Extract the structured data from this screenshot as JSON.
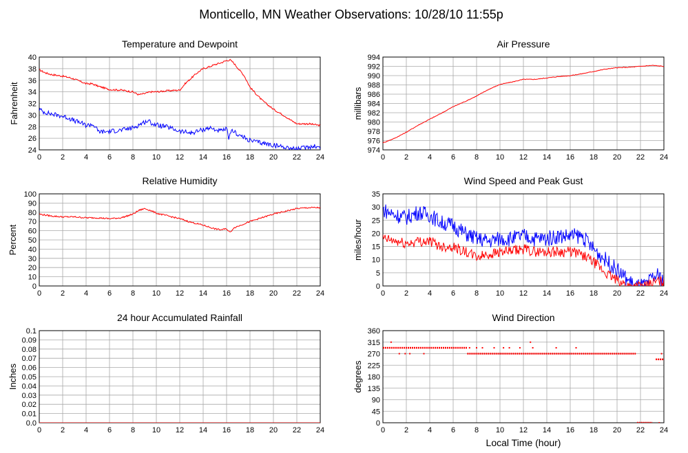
{
  "page": {
    "title": "Monticello, MN Weather Observations: 10/28/10 11:55p"
  },
  "x_axis_label": "Local Time (hour)",
  "chart_data": [
    {
      "id": "temp",
      "type": "line",
      "title": "Temperature and Dewpoint",
      "ylabel": "Fahrenheit",
      "xlabel": "",
      "xlim": [
        0,
        24
      ],
      "ylim": [
        24,
        40
      ],
      "xticks": [
        0,
        2,
        4,
        6,
        8,
        10,
        12,
        14,
        16,
        18,
        20,
        22,
        24
      ],
      "yticks": [
        24,
        26,
        28,
        30,
        32,
        34,
        36,
        38,
        40
      ],
      "grid": true,
      "series": [
        {
          "color": "#ff0000",
          "noise": 0.15,
          "x": [
            0,
            0.5,
            1,
            2,
            2.5,
            3,
            3.5,
            4,
            4.5,
            5,
            5.5,
            6,
            7,
            8,
            8.5,
            9,
            9.5,
            10,
            11,
            12,
            12.5,
            13,
            13.5,
            14,
            14.5,
            15,
            15.5,
            16,
            16.3,
            16.6,
            17,
            17.5,
            18,
            19,
            20,
            21,
            21.5,
            22,
            23,
            24
          ],
          "y": [
            37.8,
            37.3,
            37.0,
            36.7,
            36.5,
            36.2,
            35.8,
            35.4,
            35.4,
            35.0,
            34.7,
            34.4,
            34.3,
            34.0,
            33.5,
            33.7,
            34.0,
            34.0,
            34.2,
            34.3,
            35.5,
            36.4,
            37.3,
            38.0,
            38.3,
            38.7,
            39.0,
            39.4,
            39.5,
            39.0,
            38.0,
            36.8,
            34.8,
            32.6,
            31.0,
            29.8,
            29.1,
            28.5,
            28.5,
            28.2
          ]
        },
        {
          "color": "#0000ff",
          "noise": 0.4,
          "x": [
            0,
            0.3,
            1,
            2,
            2.5,
            3,
            3.5,
            4,
            4.5,
            4.8,
            5,
            5.5,
            6,
            7,
            8,
            8.5,
            9,
            9.3,
            9.7,
            10,
            11,
            12,
            13,
            14,
            14.5,
            15,
            15.5,
            16,
            16.2,
            16.5,
            17,
            18,
            19,
            20,
            21,
            22,
            22.5,
            23,
            23.5,
            24
          ],
          "y": [
            31.0,
            30.6,
            30.2,
            29.8,
            29.5,
            29.0,
            28.7,
            28.2,
            28.4,
            28.0,
            27.2,
            27.1,
            27.2,
            27.4,
            27.8,
            28.3,
            28.8,
            29.0,
            28.5,
            28.3,
            27.9,
            27.2,
            26.9,
            27.5,
            27.8,
            27.5,
            27.2,
            27.6,
            26.0,
            27.4,
            26.6,
            25.6,
            25.2,
            24.8,
            24.5,
            24.1,
            24.3,
            24.5,
            24.7,
            24.3
          ]
        }
      ]
    },
    {
      "id": "press",
      "type": "line",
      "title": "Air Pressure",
      "ylabel": "millibars",
      "xlabel": "",
      "xlim": [
        0,
        24
      ],
      "ylim": [
        974,
        994
      ],
      "xticks": [
        0,
        2,
        4,
        6,
        8,
        10,
        12,
        14,
        16,
        18,
        20,
        22,
        24
      ],
      "yticks": [
        974,
        976,
        978,
        980,
        982,
        984,
        986,
        988,
        990,
        992,
        994
      ],
      "grid": true,
      "series": [
        {
          "color": "#ff0000",
          "noise": 0.08,
          "x": [
            0,
            1,
            2,
            3,
            4,
            5,
            6,
            7,
            8,
            9,
            10,
            11,
            12,
            13,
            14,
            15,
            16,
            17,
            18,
            19,
            20,
            21,
            22,
            23,
            24
          ],
          "y": [
            975.5,
            976.5,
            977.8,
            979.3,
            980.6,
            981.9,
            983.3,
            984.4,
            985.6,
            987.0,
            988.1,
            988.6,
            989.2,
            989.2,
            989.5,
            989.8,
            990.0,
            990.4,
            990.9,
            991.4,
            991.7,
            991.8,
            992.0,
            992.2,
            992.0
          ]
        }
      ]
    },
    {
      "id": "rh",
      "type": "line",
      "title": "Relative Humidity",
      "ylabel": "Percent",
      "xlabel": "",
      "xlim": [
        0,
        24
      ],
      "ylim": [
        0,
        100
      ],
      "xticks": [
        0,
        2,
        4,
        6,
        8,
        10,
        12,
        14,
        16,
        18,
        20,
        22,
        24
      ],
      "yticks": [
        0,
        10,
        20,
        30,
        40,
        50,
        60,
        70,
        80,
        90,
        100
      ],
      "grid": true,
      "series": [
        {
          "color": "#ff0000",
          "noise": 0.8,
          "x": [
            0,
            1,
            2,
            3,
            4,
            5,
            6,
            7,
            8,
            8.5,
            9,
            9.5,
            10,
            11,
            12,
            13,
            14,
            15,
            15.5,
            16,
            16.3,
            16.6,
            17,
            18,
            19,
            20,
            21,
            22,
            23,
            24
          ],
          "y": [
            78,
            76,
            75,
            75,
            74,
            74,
            73,
            74,
            78,
            82,
            84,
            82,
            79,
            76,
            73,
            69,
            66,
            62,
            61,
            62,
            58,
            63,
            65,
            70,
            74,
            78,
            81,
            84,
            85,
            85
          ]
        }
      ]
    },
    {
      "id": "wind",
      "type": "line",
      "title": "Wind Speed and Peak Gust",
      "ylabel": "miles/hour",
      "xlabel": "",
      "xlim": [
        0,
        24
      ],
      "ylim": [
        0,
        35
      ],
      "xticks": [
        0,
        2,
        4,
        6,
        8,
        10,
        12,
        14,
        16,
        18,
        20,
        22,
        24
      ],
      "yticks": [
        0,
        5,
        10,
        15,
        20,
        25,
        30,
        35
      ],
      "grid": true,
      "series": [
        {
          "color": "#0000ff",
          "noise": 3.0,
          "x": [
            0,
            1,
            2,
            3,
            4,
            5,
            6,
            7,
            8,
            9,
            10,
            11,
            12,
            13,
            14,
            15,
            16,
            17,
            18,
            19,
            20,
            21,
            21.5,
            22,
            22.5,
            23,
            23.5,
            24
          ],
          "y": [
            29,
            27,
            26,
            28,
            27,
            24,
            23,
            20,
            18,
            17,
            18,
            18,
            19,
            18,
            18,
            19,
            19,
            19,
            14,
            10,
            6,
            2,
            0,
            0,
            0,
            3,
            4,
            2
          ]
        },
        {
          "color": "#ff0000",
          "noise": 2.0,
          "x": [
            0,
            1,
            2,
            3,
            4,
            5,
            6,
            7,
            8,
            9,
            10,
            11,
            12,
            13,
            14,
            15,
            16,
            17,
            18,
            19,
            20,
            20.5,
            21,
            21.5,
            22,
            22.5,
            23,
            23.5,
            24
          ],
          "y": [
            18,
            17,
            16,
            17,
            17,
            15,
            15,
            13,
            11,
            12,
            13,
            13,
            14,
            13,
            13,
            13,
            13,
            12,
            9,
            5,
            2,
            1,
            0,
            0,
            0,
            0,
            1,
            2,
            1
          ]
        }
      ]
    },
    {
      "id": "rain",
      "type": "line",
      "title": "24 hour Accumulated Rainfall",
      "ylabel": "Inches",
      "xlabel": "",
      "xlim": [
        0,
        24
      ],
      "ylim": [
        0,
        0.1
      ],
      "xticks": [
        0,
        2,
        4,
        6,
        8,
        10,
        12,
        14,
        16,
        18,
        20,
        22,
        24
      ],
      "yticks": [
        "0.0",
        "0.01",
        "0.02",
        "0.03",
        "0.04",
        "0.05",
        "0.06",
        "0.07",
        "0.08",
        "0.09",
        "0.1"
      ],
      "grid": true,
      "series": [
        {
          "color": "#ff0000",
          "noise": 0,
          "x": [
            0,
            24
          ],
          "y": [
            0,
            0
          ]
        }
      ]
    },
    {
      "id": "dir",
      "type": "scatter",
      "title": "Wind Direction",
      "ylabel": "degrees",
      "xlabel": "Local Time (hour)",
      "xlim": [
        0,
        24
      ],
      "ylim": [
        0,
        360
      ],
      "xticks": [
        0,
        2,
        4,
        6,
        8,
        10,
        12,
        14,
        16,
        18,
        20,
        22,
        24
      ],
      "yticks": [
        0,
        45,
        90,
        135,
        180,
        225,
        270,
        315,
        360
      ],
      "grid": true,
      "series": [
        {
          "color": "#ff0000",
          "segments": [
            {
              "x": [
                0,
                7.2
              ],
              "y": 293
            },
            {
              "x": [
                7.2,
                21.6
              ],
              "y": 270
            },
            {
              "x": [
                21.7,
                23.0
              ],
              "y": 0
            },
            {
              "x": [
                23.3,
                24
              ],
              "y": 248
            }
          ],
          "points": [
            {
              "x": 0.7,
              "y": 315
            },
            {
              "x": 1.4,
              "y": 270
            },
            {
              "x": 1.9,
              "y": 270
            },
            {
              "x": 2.3,
              "y": 270
            },
            {
              "x": 3.5,
              "y": 270
            },
            {
              "x": 7.4,
              "y": 293
            },
            {
              "x": 8.0,
              "y": 293
            },
            {
              "x": 8.5,
              "y": 293
            },
            {
              "x": 9.5,
              "y": 293
            },
            {
              "x": 10.3,
              "y": 293
            },
            {
              "x": 10.8,
              "y": 293
            },
            {
              "x": 11.7,
              "y": 293
            },
            {
              "x": 12.6,
              "y": 315
            },
            {
              "x": 12.8,
              "y": 293
            },
            {
              "x": 14.8,
              "y": 293
            },
            {
              "x": 16.5,
              "y": 293
            },
            {
              "x": 23.8,
              "y": 270
            },
            {
              "x": 23.6,
              "y": 0
            }
          ]
        }
      ]
    }
  ]
}
